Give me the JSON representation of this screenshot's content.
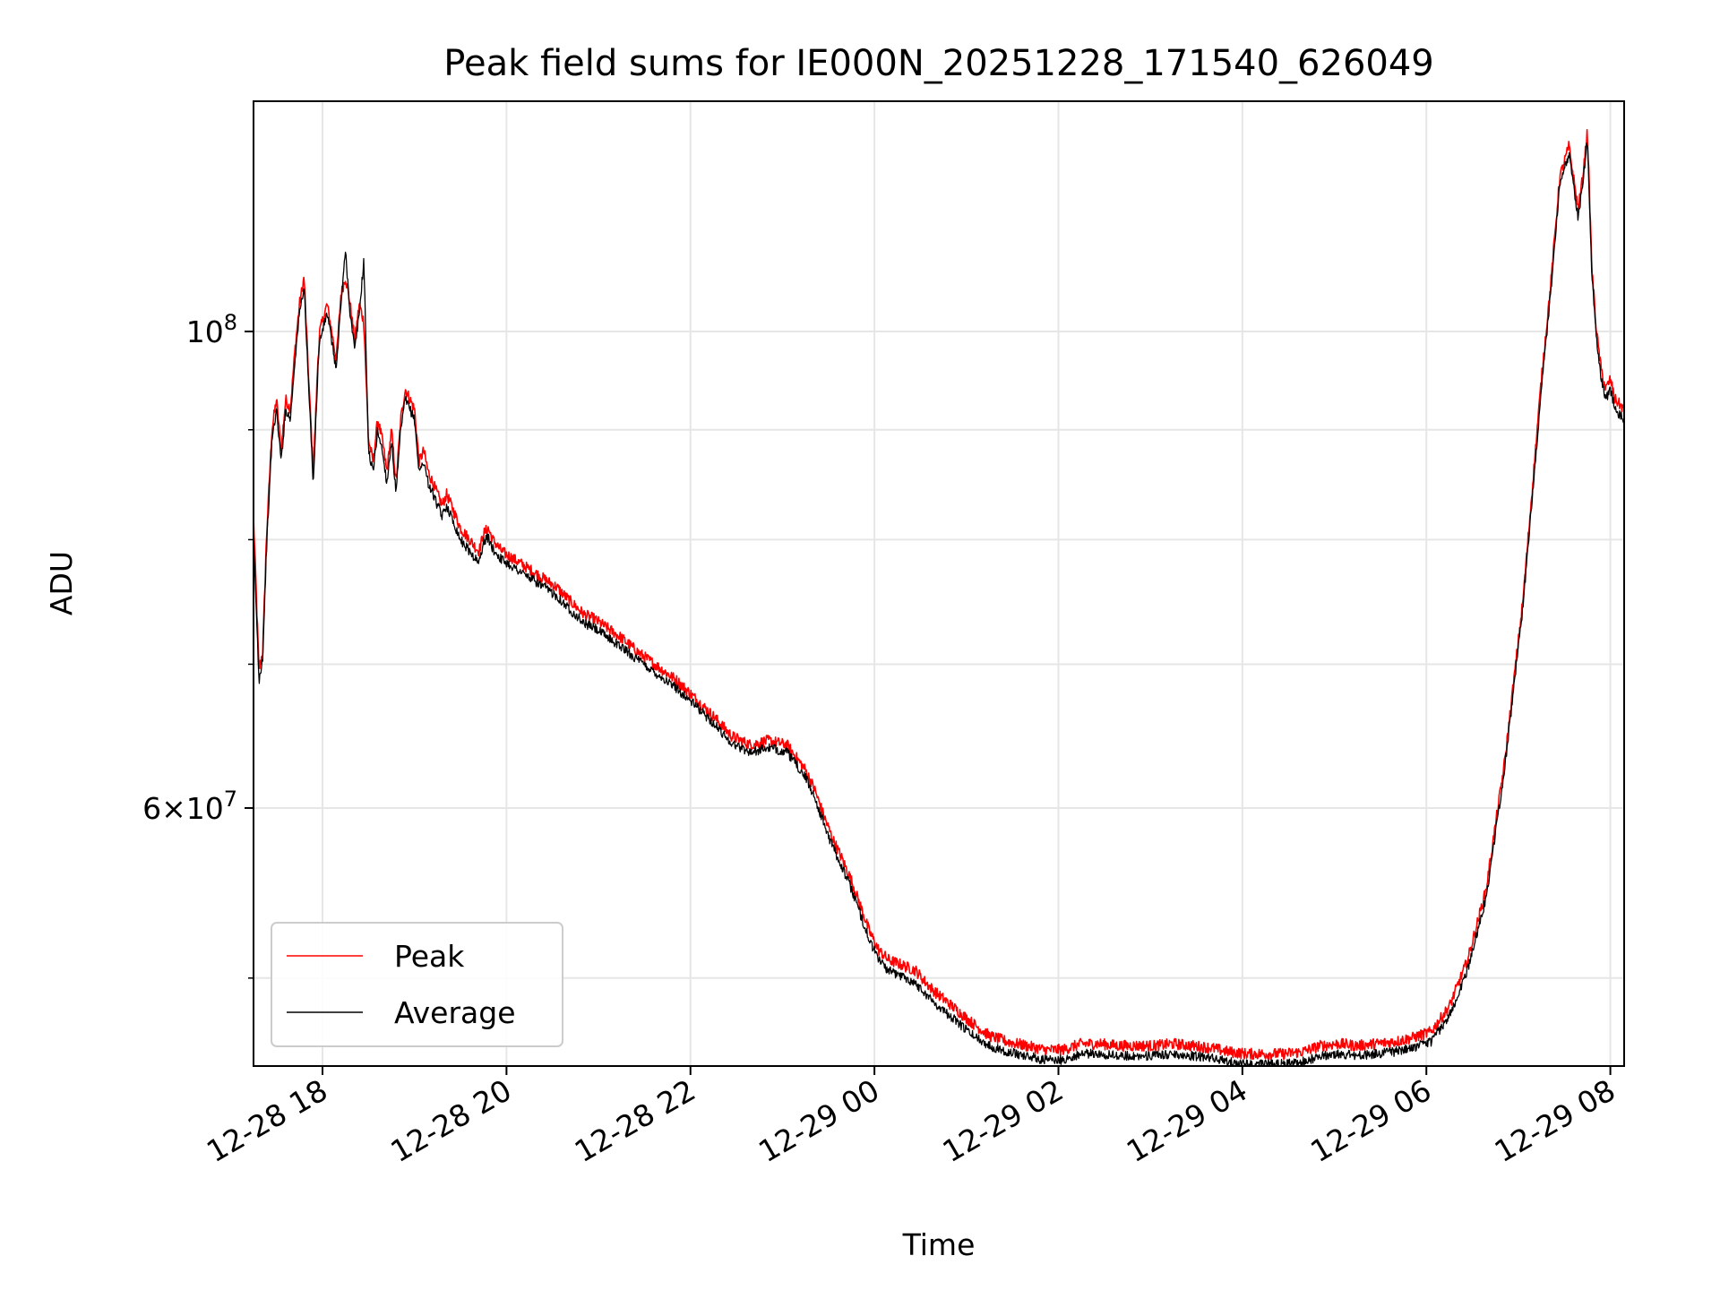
{
  "chart_data": {
    "type": "line",
    "title": "Peak field sums for IE000N_20251228_171540_626049",
    "xlabel": "Time",
    "ylabel": "ADU",
    "yscale": "log",
    "ylim": [
      45500000,
      128000000
    ],
    "x_units": "hours since 12-28 17:15",
    "xlim": [
      0,
      14.9
    ],
    "x_ticks": [
      {
        "t": 0.75,
        "label": "12-28 18"
      },
      {
        "t": 2.75,
        "label": "12-28 20"
      },
      {
        "t": 4.75,
        "label": "12-28 22"
      },
      {
        "t": 6.75,
        "label": "12-29 00"
      },
      {
        "t": 8.75,
        "label": "12-29 02"
      },
      {
        "t": 10.75,
        "label": "12-29 04"
      },
      {
        "t": 12.75,
        "label": "12-29 06"
      },
      {
        "t": 14.75,
        "label": "12-29 08"
      }
    ],
    "y_major_ticks": [
      {
        "value": 100000000,
        "base": "10",
        "exp": "8"
      },
      {
        "value": 60000000,
        "mant": "6",
        "base": "10",
        "exp": "7"
      }
    ],
    "y_minor_ticks": [
      50000000,
      70000000,
      80000000,
      90000000
    ],
    "grid": true,
    "legend": {
      "position": "lower-left",
      "entries": [
        "Peak",
        "Average"
      ]
    },
    "series": [
      {
        "name": "Peak",
        "color": "#ff0000",
        "t": [
          0,
          0.06,
          0.1,
          0.14,
          0.2,
          0.25,
          0.3,
          0.35,
          0.4,
          0.45,
          0.5,
          0.55,
          0.6,
          0.65,
          0.7,
          0.72,
          0.8,
          0.85,
          0.9,
          0.95,
          1.0,
          1.05,
          1.1,
          1.15,
          1.2,
          1.25,
          1.3,
          1.35,
          1.4,
          1.45,
          1.5,
          1.55,
          1.6,
          1.65,
          1.7,
          1.75,
          1.8,
          1.85,
          1.9,
          1.95,
          2.0,
          2.05,
          2.1,
          2.15,
          2.2,
          2.25,
          2.3,
          2.35,
          2.4,
          2.45,
          2.5,
          2.55,
          2.6,
          2.7,
          2.8,
          2.9,
          3.0,
          3.1,
          3.2,
          3.3,
          3.4,
          3.5,
          3.6,
          3.7,
          3.8,
          3.9,
          4.0,
          4.2,
          4.4,
          4.6,
          4.8,
          5.0,
          5.2,
          5.4,
          5.6,
          5.8,
          6.0,
          6.1,
          6.2,
          6.3,
          6.4,
          6.5,
          6.6,
          6.7,
          6.8,
          6.9,
          7.0,
          7.1,
          7.2,
          7.3,
          7.4,
          7.5,
          7.6,
          7.8,
          8.0,
          8.2,
          8.4,
          8.6,
          8.8,
          9.0,
          9.2,
          9.4,
          9.6,
          9.8,
          10.0,
          10.2,
          10.4,
          10.6,
          10.8,
          11.0,
          11.2,
          11.4,
          11.6,
          11.8,
          12.0,
          12.2,
          12.4,
          12.6,
          12.8,
          13.0,
          13.2,
          13.4,
          13.6,
          13.8,
          14.0,
          14.1,
          14.2,
          14.3,
          14.4,
          14.45,
          14.5,
          14.55,
          14.6,
          14.65,
          14.7,
          14.75,
          14.8,
          14.9
        ],
        "values": [
          82000000,
          69500000,
          71000000,
          80000000,
          90000000,
          93000000,
          88000000,
          93000000,
          92000000,
          98000000,
          103000000,
          106000000,
          95000000,
          86000000,
          97000000,
          100000000,
          103000000,
          100000000,
          97000000,
          104000000,
          106000000,
          103000000,
          99000000,
          103000000,
          101000000,
          89000000,
          87000000,
          91000000,
          89000000,
          86000000,
          90000000,
          85000000,
          91000000,
          94000000,
          93000000,
          92000000,
          87000000,
          88000000,
          86000000,
          85000000,
          84000000,
          83000000,
          84000000,
          83000000,
          82000000,
          81000000,
          80500000,
          80000000,
          79500000,
          79000000,
          80500000,
          81000000,
          80000000,
          79000000,
          78500000,
          78000000,
          77500000,
          77000000,
          76500000,
          76000000,
          75200000,
          74500000,
          73800000,
          73500000,
          73000000,
          72500000,
          72000000,
          70800000,
          69800000,
          68800000,
          67500000,
          66200000,
          64800000,
          64200000,
          64500000,
          64200000,
          62500000,
          61200000,
          59500000,
          58000000,
          56800000,
          55500000,
          54000000,
          52500000,
          51500000,
          51000000,
          50800000,
          50600000,
          50400000,
          49800000,
          49300000,
          48900000,
          48500000,
          47700000,
          47000000,
          46700000,
          46500000,
          46300000,
          46300000,
          46600000,
          46600000,
          46500000,
          46500000,
          46500000,
          46600000,
          46500000,
          46400000,
          46200000,
          46100000,
          46100000,
          46100000,
          46200000,
          46500000,
          46600000,
          46500000,
          46600000,
          46700000,
          46900000,
          47200000,
          48500000,
          51000000,
          55000000,
          63000000,
          75000000,
          95000000,
          105000000,
          118000000,
          122000000,
          114000000,
          118000000,
          124000000,
          107000000,
          100000000,
          96000000,
          94000000,
          95000000,
          93000000,
          92000000
        ],
        "noise": 0.006
      },
      {
        "name": "Average",
        "color": "#000000",
        "t": [
          0,
          0.06,
          0.1,
          0.14,
          0.2,
          0.25,
          0.3,
          0.35,
          0.4,
          0.45,
          0.5,
          0.55,
          0.6,
          0.65,
          0.7,
          0.72,
          0.8,
          0.85,
          0.9,
          0.95,
          1.0,
          1.05,
          1.1,
          1.15,
          1.2,
          1.25,
          1.3,
          1.35,
          1.4,
          1.45,
          1.5,
          1.55,
          1.6,
          1.65,
          1.7,
          1.75,
          1.8,
          1.85,
          1.9,
          1.95,
          2.0,
          2.05,
          2.1,
          2.15,
          2.2,
          2.25,
          2.3,
          2.35,
          2.4,
          2.45,
          2.5,
          2.55,
          2.6,
          2.7,
          2.8,
          2.9,
          3.0,
          3.1,
          3.2,
          3.3,
          3.4,
          3.5,
          3.6,
          3.7,
          3.8,
          3.9,
          4.0,
          4.2,
          4.4,
          4.6,
          4.8,
          5.0,
          5.2,
          5.4,
          5.6,
          5.8,
          6.0,
          6.1,
          6.2,
          6.3,
          6.4,
          6.5,
          6.6,
          6.7,
          6.8,
          6.9,
          7.0,
          7.1,
          7.2,
          7.3,
          7.4,
          7.5,
          7.6,
          7.8,
          8.0,
          8.2,
          8.4,
          8.6,
          8.8,
          9.0,
          9.2,
          9.4,
          9.6,
          9.8,
          10.0,
          10.2,
          10.4,
          10.6,
          10.8,
          11.0,
          11.2,
          11.4,
          11.6,
          11.8,
          12.0,
          12.2,
          12.4,
          12.6,
          12.8,
          13.0,
          13.2,
          13.4,
          13.6,
          13.8,
          14.0,
          14.1,
          14.2,
          14.3,
          14.4,
          14.45,
          14.5,
          14.55,
          14.6,
          14.65,
          14.7,
          14.75,
          14.8,
          14.9
        ],
        "values": [
          80000000,
          68800000,
          70500000,
          79000000,
          89000000,
          92000000,
          87000000,
          92000000,
          91000000,
          97000000,
          102000000,
          105000000,
          94000000,
          85000000,
          96000000,
          99000000,
          102000000,
          99000000,
          96000000,
          103000000,
          109000000,
          102000000,
          98000000,
          102000000,
          108000000,
          88000000,
          86000000,
          90000000,
          88000000,
          85000000,
          89000000,
          84000000,
          90000000,
          93000000,
          92000000,
          91000000,
          86000000,
          87000000,
          85000000,
          84000000,
          83000000,
          82000000,
          83000000,
          82000000,
          81000000,
          80000000,
          79500000,
          79000000,
          78500000,
          78000000,
          79800000,
          80200000,
          79200000,
          78300000,
          77800000,
          77300000,
          76800000,
          76300000,
          75800000,
          75300000,
          74500000,
          73800000,
          73100000,
          72800000,
          72300000,
          71800000,
          71300000,
          70200000,
          69200000,
          68200000,
          67000000,
          65700000,
          64300000,
          63700000,
          64000000,
          63700000,
          62000000,
          60700000,
          59000000,
          57500000,
          56300000,
          55000000,
          53500000,
          52000000,
          51000000,
          50400000,
          50200000,
          50000000,
          49700000,
          49200000,
          48700000,
          48300000,
          47900000,
          47100000,
          46500000,
          46200000,
          46000000,
          45800000,
          45800000,
          46100000,
          46100000,
          46000000,
          46000000,
          46000000,
          46100000,
          46000000,
          45900000,
          45700000,
          45600000,
          45600000,
          45600000,
          45700000,
          46000000,
          46100000,
          46000000,
          46100000,
          46200000,
          46400000,
          46700000,
          48000000,
          50500000,
          54500000,
          62500000,
          74500000,
          94000000,
          104000000,
          117000000,
          121000000,
          113000000,
          117000000,
          123000000,
          106000000,
          99000000,
          95000000,
          93000000,
          94000000,
          92000000,
          91000000
        ],
        "noise": 0.005
      }
    ]
  }
}
